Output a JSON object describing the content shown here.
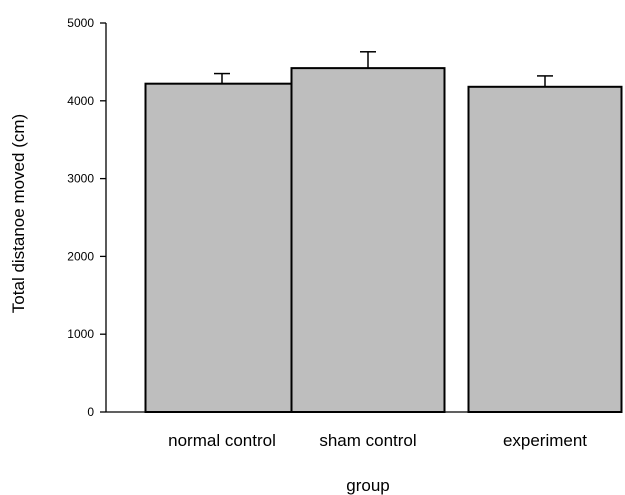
{
  "chart_data": {
    "type": "bar",
    "categories": [
      "normal control",
      "sham control",
      "experiment"
    ],
    "values": [
      4220,
      4420,
      4180
    ],
    "errors": [
      130,
      210,
      140
    ],
    "xlabel": "group",
    "ylabel": "Total distanoe moved (cm)",
    "ylim": [
      0,
      5000
    ],
    "yticks": [
      0,
      1000,
      2000,
      3000,
      4000,
      5000
    ],
    "grid": false,
    "bar_color": "#bebebe",
    "edge_color": "#000000"
  }
}
